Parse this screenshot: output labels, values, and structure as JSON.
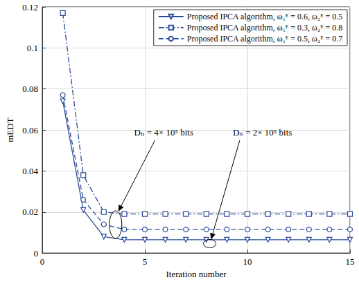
{
  "chart_data": {
    "type": "line",
    "x_label": "Iteration number",
    "y_label": "mEDT",
    "x": [
      1,
      2,
      3,
      4,
      5,
      6,
      7,
      8,
      9,
      10,
      11,
      12,
      13,
      14,
      15
    ],
    "series": [
      {
        "name": "Proposed IPCA algorithm, ω₁ᴱ = 0.6, ω₂ᴱ = 0.5",
        "color": "#2b4c9b",
        "marker": "triangle-down",
        "line_style": "solid",
        "values": [
          0.074,
          0.021,
          0.008,
          0.0065,
          0.0065,
          0.0065,
          0.0065,
          0.0065,
          0.0065,
          0.0065,
          0.0065,
          0.0065,
          0.0065,
          0.0065,
          0.0065
        ]
      },
      {
        "name": "Proposed IPCA algorithm, ω₁ᴱ = 0.3, ω₂ᴱ = 0.8",
        "color": "#2b4c9b",
        "marker": "square",
        "line_style": "dashdot",
        "values": [
          0.117,
          0.038,
          0.02,
          0.019,
          0.019,
          0.019,
          0.019,
          0.019,
          0.019,
          0.019,
          0.019,
          0.019,
          0.019,
          0.019,
          0.019
        ]
      },
      {
        "name": "Proposed IPCA algorithm, ω₁ᴱ = 0.5, ω₂ᴱ = 0.7",
        "color": "#2b4c9b",
        "marker": "circle",
        "line_style": "dashed",
        "values": [
          0.077,
          0.026,
          0.014,
          0.0115,
          0.0115,
          0.0115,
          0.0115,
          0.0115,
          0.0115,
          0.0115,
          0.0115,
          0.0115,
          0.0115,
          0.0115,
          0.0115
        ]
      }
    ],
    "xlim": [
      0,
      15
    ],
    "xticks": [
      0,
      5,
      10,
      15
    ],
    "ylim": [
      0,
      0.12
    ],
    "yticks": [
      0,
      0.02,
      0.04,
      0.06,
      0.08,
      0.1,
      0.12
    ],
    "grid": true,
    "legend": "upper right",
    "annotations": [
      "Dₙ = 4× 10⁵ bits",
      "Dₙ = 2× 10⁵ bits"
    ]
  }
}
